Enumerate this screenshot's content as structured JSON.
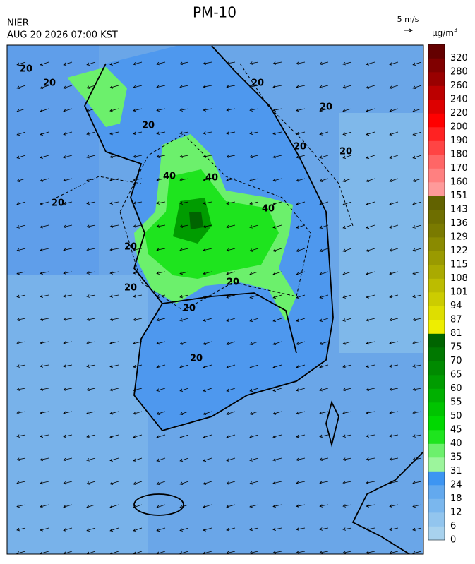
{
  "header": {
    "title": "PM-10",
    "source": "NIER",
    "timestamp": "AUG 20 2026 07:00 KST"
  },
  "wind_scale": {
    "label": "5 m/s"
  },
  "colorbar": {
    "unit": "µg/m",
    "unit_power": "3",
    "levels": [
      {
        "label": 0,
        "color": "#a8d2ee"
      },
      {
        "label": 6,
        "color": "#92c5ee"
      },
      {
        "label": 12,
        "color": "#7ab7ee"
      },
      {
        "label": 18,
        "color": "#63a9ee"
      },
      {
        "label": 24,
        "color": "#3d95f2"
      },
      {
        "label": 31,
        "color": "#9cf59c"
      },
      {
        "label": 35,
        "color": "#6cf06c"
      },
      {
        "label": 40,
        "color": "#1ee41e"
      },
      {
        "label": 45,
        "color": "#00d800"
      },
      {
        "label": 50,
        "color": "#00c400"
      },
      {
        "label": 55,
        "color": "#00b000"
      },
      {
        "label": 60,
        "color": "#009c00"
      },
      {
        "label": 65,
        "color": "#008a00"
      },
      {
        "label": 70,
        "color": "#007800"
      },
      {
        "label": 75,
        "color": "#006400"
      },
      {
        "label": 81,
        "color": "#eeee00"
      },
      {
        "label": 87,
        "color": "#dede00"
      },
      {
        "label": 94,
        "color": "#cccc00"
      },
      {
        "label": 101,
        "color": "#bcbc00"
      },
      {
        "label": 108,
        "color": "#aaaa00"
      },
      {
        "label": 115,
        "color": "#9a9a00"
      },
      {
        "label": 122,
        "color": "#8a8a00"
      },
      {
        "label": 129,
        "color": "#7a7a00"
      },
      {
        "label": 136,
        "color": "#6e6e00"
      },
      {
        "label": 143,
        "color": "#626200"
      },
      {
        "label": 151,
        "color": "#ff9a9a"
      },
      {
        "label": 160,
        "color": "#ff8080"
      },
      {
        "label": 170,
        "color": "#ff6666"
      },
      {
        "label": 180,
        "color": "#ff4444"
      },
      {
        "label": 190,
        "color": "#ff2222"
      },
      {
        "label": 200,
        "color": "#ff0000"
      },
      {
        "label": 220,
        "color": "#dd0000"
      },
      {
        "label": 240,
        "color": "#bb0000"
      },
      {
        "label": 260,
        "color": "#990000"
      },
      {
        "label": 280,
        "color": "#800000"
      },
      {
        "label": 320,
        "color": "#640000"
      }
    ]
  },
  "contour_labels": [
    "20",
    "20",
    "20",
    "20",
    "20",
    "20",
    "20",
    "20",
    "20",
    "20",
    "40",
    "40",
    "40",
    "20",
    "20",
    "20"
  ]
}
